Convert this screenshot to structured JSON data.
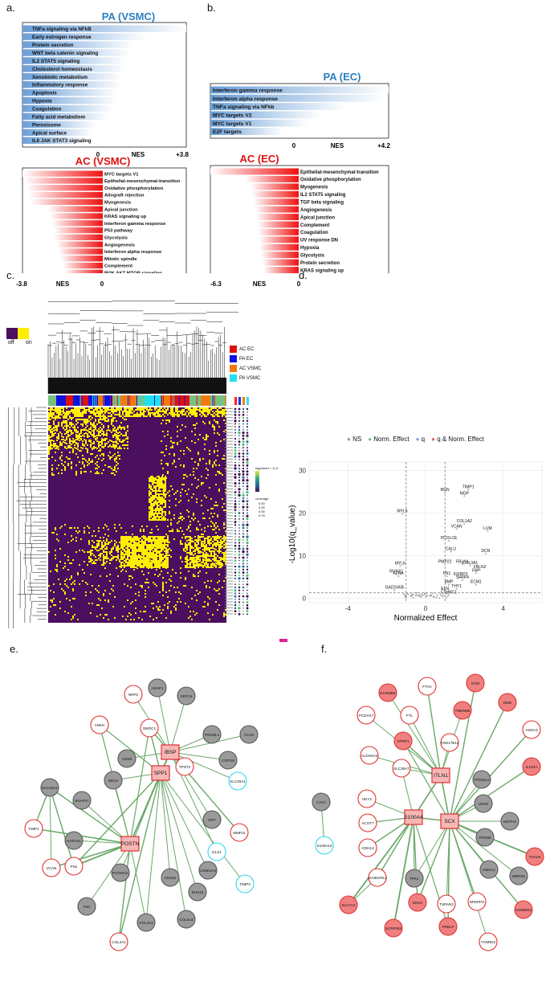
{
  "panels": {
    "a_label": "a.",
    "b_label": "b.",
    "c_label": "c.",
    "d_label": "d.",
    "e_label": "e.",
    "f_label": "f."
  },
  "gsea": {
    "pa_vsmc": {
      "title": "PA (VSMC)",
      "title_color": "#2a7fc1",
      "axis_min": "0",
      "axis_label": "NES",
      "axis_max": "+3.8",
      "terms": [
        "TNFa signaling via NFkB",
        "Early estrogen response",
        "Protein secretion",
        "WNT beta catenin signaling",
        "IL2 STAT5 signaling",
        "Cholesterol homeostasis",
        "Xenobiotic metabolism",
        "Inflammatory response",
        "Apoptosis",
        "Hypoxia",
        "Coagulation",
        "Fatty acid metabolism",
        "Peroxisome",
        "Apical surface",
        "IL6 JAK STAT3 signaling"
      ],
      "nes": [
        3.8,
        2.9,
        2.6,
        2.5,
        2.4,
        2.4,
        2.3,
        2.3,
        2.2,
        2.2,
        2.1,
        2.0,
        1.7,
        1.6,
        1.5
      ]
    },
    "ac_vsmc": {
      "title": "AC (VSMC)",
      "title_color": "#e01010",
      "axis_min": "-3.8",
      "axis_label": "NES",
      "axis_max": "0",
      "terms": [
        "MYC targets V1",
        "Epithelial-mesenchymal-transition",
        "Oxidative phosphorylation",
        "Allograft rejection",
        "Myogenesis",
        "Apical junction",
        "KRAS signaling up",
        "Interferon gamma response",
        "P53 pathway",
        "Glycolysis",
        "Angiogenesis",
        "Interferon alpha response",
        "Mitotic spindle",
        "Complement",
        "PI3K AKT MTOR signaling"
      ],
      "nes": [
        -3.8,
        -3.7,
        -3.6,
        -3.5,
        -3.4,
        -2.6,
        -2.5,
        -2.4,
        -2.3,
        -2.3,
        -2.2,
        -2.1,
        -2.0,
        -1.9,
        -1.8
      ]
    },
    "pa_ec": {
      "title": "PA (EC)",
      "title_color": "#2a7fc1",
      "axis_min": "0",
      "axis_label": "NES",
      "axis_max": "+4.2",
      "terms": [
        "Interferon gamma response",
        "Interferon alpha response",
        "TNFa signaling via NFkb",
        "MYC targets V2",
        "MYC targets V1",
        "E2F targets"
      ],
      "nes": [
        4.2,
        4.1,
        3.2,
        2.6,
        2.3,
        1.7
      ]
    },
    "ac_ec": {
      "title": "AC (EC)",
      "title_color": "#e01010",
      "axis_min": "-6.3",
      "axis_label": "NES",
      "axis_max": "0",
      "terms": [
        "Epithelial-mesenchymal-transition",
        "Oxidative phosphorylation",
        "Myogenesis",
        "IL2 STAT5 signaling",
        "TGF beta signaling",
        "Angiogenesis",
        "Apical junction",
        "Complement",
        "Coagulation",
        "UV response DN",
        "Hypoxia",
        "Glycolysis",
        "Protein secretion",
        "KRAS signaling up"
      ],
      "nes": [
        -6.3,
        -3.8,
        -3.4,
        -3.3,
        -3.2,
        -3.1,
        -3.0,
        -2.9,
        -2.9,
        -2.8,
        -2.8,
        -2.7,
        -2.6,
        -2.5
      ]
    }
  },
  "heatmap": {
    "key_off": "off",
    "key_on": "on",
    "off_color": "#4a0f5f",
    "on_color": "#ffee00",
    "groups": [
      {
        "label": "AC EC",
        "color": "#e01010"
      },
      {
        "label": "PA EC",
        "color": "#1010e0"
      },
      {
        "label": "AC VSMC",
        "color": "#f07a10"
      },
      {
        "label": "PA VSMC",
        "color": "#20e0f0"
      }
    ],
    "scale_title": "log(mean + 1) 0",
    "coverage_title": "coverage",
    "coverage_values": [
      "0.00",
      "0.25",
      "0.50",
      "0.75"
    ]
  },
  "volcano": {
    "legend": [
      {
        "label": "NS",
        "color": "#9a9a9a"
      },
      {
        "label": "Norm. Effect",
        "color": "#79c080"
      },
      {
        "label": "q",
        "color": "#7f9fd6"
      },
      {
        "label": "q & Norm. Effect",
        "color": "#e06060"
      }
    ],
    "xlabel": "Normalized Effect",
    "ylabel": "-Log10(q_value)",
    "xticks": [
      "-4",
      "0",
      "4"
    ],
    "yticks": [
      "0",
      "10",
      "20",
      "30"
    ]
  },
  "chart_data": {
    "type": "scatter",
    "title": "",
    "xlabel": "Normalized Effect",
    "ylabel": "-Log10(q_value)",
    "xlim": [
      -6,
      6
    ],
    "ylim": [
      -1,
      32
    ],
    "points": [
      {
        "gene": "TIMP1",
        "x": 2.2,
        "y": 25.5
      },
      {
        "gene": "BGN",
        "x": 1.0,
        "y": 24.8
      },
      {
        "gene": "MGP",
        "x": 2.0,
        "y": 24.0
      },
      {
        "gene": "MYL9",
        "x": -1.2,
        "y": 19.8
      },
      {
        "gene": "COL1A2",
        "x": 2.0,
        "y": 17.5
      },
      {
        "gene": "VCAN",
        "x": 1.6,
        "y": 16.3
      },
      {
        "gene": "LUM",
        "x": 3.2,
        "y": 15.8
      },
      {
        "gene": "PCOLCE",
        "x": 1.2,
        "y": 13.5
      },
      {
        "gene": "CALU",
        "x": 1.3,
        "y": 11.0
      },
      {
        "gene": "DCN",
        "x": 3.1,
        "y": 10.5
      },
      {
        "gene": "MYLK",
        "x": -1.3,
        "y": 7.6
      },
      {
        "gene": "PMP22",
        "x": 1.0,
        "y": 8.0
      },
      {
        "gene": "FBLN1",
        "x": 1.9,
        "y": 8.0
      },
      {
        "gene": "COL3A1",
        "x": 2.3,
        "y": 7.7
      },
      {
        "gene": "FBLN2",
        "x": 2.8,
        "y": 6.7
      },
      {
        "gene": "FAP",
        "x": 2.6,
        "y": 5.9
      },
      {
        "gene": "FLNA",
        "x": -1.4,
        "y": 5.2
      },
      {
        "gene": "RUNX1",
        "x": -1.5,
        "y": 5.7
      },
      {
        "gene": "FN1",
        "x": 1.1,
        "y": 5.2
      },
      {
        "gene": "IGFBP3",
        "x": 1.8,
        "y": 5.0
      },
      {
        "gene": "SFRP4",
        "x": 1.9,
        "y": 4.3
      },
      {
        "gene": "ECM1",
        "x": 2.6,
        "y": 3.2
      },
      {
        "gene": "BMP",
        "x": 1.2,
        "y": 3.2
      },
      {
        "gene": "THY1",
        "x": 1.6,
        "y": 2.2
      },
      {
        "gene": "GADD45B",
        "x": -1.6,
        "y": 1.9
      },
      {
        "gene": "ELN",
        "x": 1.0,
        "y": 1.6
      },
      {
        "gene": "CTHRC1",
        "x": 1.2,
        "y": 0.8
      }
    ]
  },
  "network_e": {
    "nodes": [
      {
        "label": "POSTN",
        "type": "hub"
      },
      {
        "label": "IBSP",
        "type": "hub"
      },
      {
        "label": "SPP1",
        "type": "hub"
      },
      {
        "label": "NRP2",
        "type": "red"
      },
      {
        "label": "ASAP1",
        "type": "gray"
      },
      {
        "label": "GDF15",
        "type": "gray"
      },
      {
        "label": "ANKH",
        "type": "red"
      },
      {
        "label": "SMOC1",
        "type": "red"
      },
      {
        "label": "PODNL1",
        "type": "gray"
      },
      {
        "label": "ACAN",
        "type": "gray"
      },
      {
        "label": "CDK6",
        "type": "gray"
      },
      {
        "label": "TPST2",
        "type": "red"
      },
      {
        "label": "COPS8",
        "type": "gray"
      },
      {
        "label": "SDC2",
        "type": "gray"
      },
      {
        "label": "SLC29A1",
        "type": "cyan"
      },
      {
        "label": "SLC20A1",
        "type": "gray"
      },
      {
        "label": "SNAP47",
        "type": "gray"
      },
      {
        "label": "DPT",
        "type": "gray"
      },
      {
        "label": "MMP11",
        "type": "red"
      },
      {
        "label": "TIMP1",
        "type": "red"
      },
      {
        "label": "HAPLN1",
        "type": "gray"
      },
      {
        "label": "DLX1",
        "type": "cyan"
      },
      {
        "label": "TIMP3",
        "type": "cyan"
      },
      {
        "label": "CSNK2A1",
        "type": "gray"
      },
      {
        "label": "VCAN",
        "type": "red"
      },
      {
        "label": "FN1",
        "type": "red"
      },
      {
        "label": "PCDHGA",
        "type": "gray"
      },
      {
        "label": "CD164",
        "type": "gray"
      },
      {
        "label": "DHX15",
        "type": "gray"
      },
      {
        "label": "TNC",
        "type": "gray"
      },
      {
        "label": "COL3A1",
        "type": "gray"
      },
      {
        "label": "COL5A2",
        "type": "gray"
      },
      {
        "label": "COL4A1",
        "type": "red"
      }
    ]
  },
  "network_f": {
    "nodes": [
      {
        "label": "ITLN1",
        "type": "hub"
      },
      {
        "label": "S100A4",
        "type": "hub"
      },
      {
        "label": "SCX",
        "type": "hub"
      },
      {
        "label": "KCNMB4",
        "type": "redfill"
      },
      {
        "label": "FTH1",
        "type": "red"
      },
      {
        "label": "OGN",
        "type": "redfill"
      },
      {
        "label": "DMD",
        "type": "redfill"
      },
      {
        "label": "PCDH17",
        "type": "red"
      },
      {
        "label": "FTL",
        "type": "red"
      },
      {
        "label": "TMEM88",
        "type": "redfill"
      },
      {
        "label": "SFRP1",
        "type": "redfill"
      },
      {
        "label": "RSD17B12",
        "type": "red"
      },
      {
        "label": "ANXA3",
        "type": "red"
      },
      {
        "label": "ALDH3A2",
        "type": "red"
      },
      {
        "label": "IL11RA",
        "type": "redfill"
      },
      {
        "label": "SLC39A7",
        "type": "red"
      },
      {
        "label": "TPD52L2",
        "type": "gray"
      },
      {
        "label": "HEY2",
        "type": "red"
      },
      {
        "label": "LRNG",
        "type": "gray"
      },
      {
        "label": "CAV1",
        "type": "gray"
      },
      {
        "label": "ACOT7",
        "type": "red"
      },
      {
        "label": "MCPH1",
        "type": "gray"
      },
      {
        "label": "S100A10",
        "type": "cyan"
      },
      {
        "label": "TAGLN",
        "type": "redfill"
      },
      {
        "label": "CDH13",
        "type": "red"
      },
      {
        "label": "PFDN6",
        "type": "gray"
      },
      {
        "label": "GMCL1",
        "type": "gray"
      },
      {
        "label": "SH3BGRL3",
        "type": "red"
      },
      {
        "label": "MRPS6",
        "type": "gray"
      },
      {
        "label": "TPK1",
        "type": "gray"
      },
      {
        "label": "DKK3",
        "type": "redfill"
      },
      {
        "label": "TSPAN3",
        "type": "red"
      },
      {
        "label": "NPEPPS",
        "type": "red"
      },
      {
        "label": "SLC7A2",
        "type": "redfill"
      },
      {
        "label": "HOMER3",
        "type": "redfill"
      },
      {
        "label": "SCRPIN3",
        "type": "redfill"
      },
      {
        "label": "PRELP",
        "type": "redfill"
      },
      {
        "label": "TXNRD2",
        "type": "red"
      }
    ]
  }
}
